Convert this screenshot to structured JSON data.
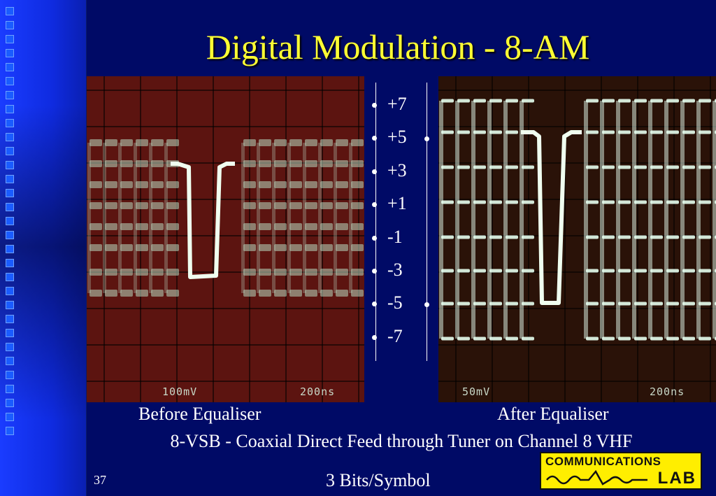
{
  "slide": {
    "title": "Digital Modulation - 8-AM",
    "page_number": "37",
    "subtitle": "8-VSB - Coaxial Direct Feed through Tuner on Channel 8 VHF",
    "bits_per_symbol": "3 Bits/Symbol"
  },
  "scopes": {
    "before": {
      "caption": "Before Equaliser",
      "volts_div": "100mV",
      "time_div": "200ns"
    },
    "after": {
      "caption": "After Equaliser",
      "volts_div": "50mV",
      "time_div": "200ns"
    }
  },
  "levels": [
    "+7",
    "+5",
    "+3",
    "+1",
    "-1",
    "-3",
    "-5",
    "-7"
  ],
  "logo": {
    "line1": "COMMUNICATIONS",
    "line2": "LAB"
  },
  "colors": {
    "background": "#000a66",
    "title": "#ffff33",
    "logo": "#ffee00"
  }
}
